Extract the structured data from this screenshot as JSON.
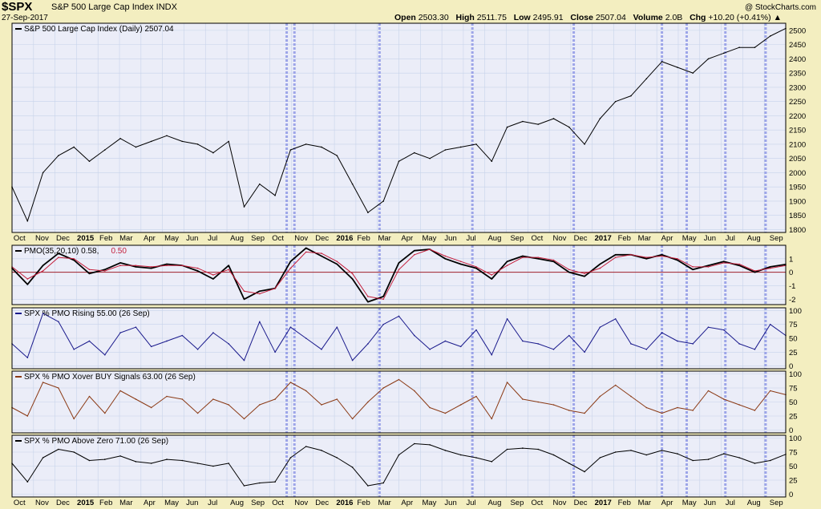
{
  "header": {
    "symbol": "$SPX",
    "name": "S&P 500 Large Cap Index  INDX",
    "date": "27-Sep-2017",
    "brand": "@ StockCharts.com",
    "ohlc": {
      "open_label": "Open",
      "open": "2503.30",
      "high_label": "High",
      "high": "2511.75",
      "low_label": "Low",
      "low": "2495.91",
      "close_label": "Close",
      "close": "2507.04",
      "volume_label": "Volume",
      "volume": "2.0B",
      "change_label": "Chg",
      "change": "+10.20 (+0.41%)"
    }
  },
  "colors": {
    "background": "#f3eec0",
    "panel": "#ebedf8",
    "grid": "#c7d3ea",
    "vertical_marker": "#9da5e8",
    "zero_line": "#a0202a",
    "price": "#000000",
    "pmo": "#000000",
    "pmo_signal": "#c41f3b",
    "pmo_rising": "#1a1a8c",
    "xover_buy": "#8b3a15",
    "above_zero": "#000000"
  },
  "chart_data": [
    {
      "type": "line",
      "legend": "S&P 500 Large Cap Index (Daily) 2507.04",
      "series": [
        {
          "name": "S&P 500 Large Cap Index (Daily)",
          "x": [
            0,
            2,
            4,
            6,
            8,
            10,
            12,
            14,
            16,
            18,
            20,
            22,
            24,
            26,
            28,
            30,
            32,
            34,
            36,
            38,
            40,
            42,
            44,
            46,
            48,
            50,
            52,
            54,
            56,
            58,
            60,
            62,
            64,
            66,
            68,
            70,
            72,
            74,
            76,
            78,
            80,
            82,
            84,
            86,
            88,
            90,
            92,
            94,
            96,
            98,
            100
          ],
          "values": [
            1950,
            1830,
            2000,
            2060,
            2090,
            2040,
            2080,
            2120,
            2090,
            2110,
            2130,
            2110,
            2100,
            2070,
            2110,
            1880,
            1960,
            1920,
            2080,
            2100,
            2090,
            2060,
            1960,
            1860,
            1900,
            2040,
            2070,
            2050,
            2080,
            2090,
            2100,
            2040,
            2160,
            2180,
            2170,
            2190,
            2160,
            2100,
            2190,
            2250,
            2270,
            2330,
            2390,
            2370,
            2350,
            2400,
            2420,
            2440,
            2440,
            2480,
            2507
          ]
        }
      ],
      "y_ticks": [
        1800,
        1850,
        1900,
        1950,
        2000,
        2050,
        2100,
        2150,
        2200,
        2250,
        2300,
        2350,
        2400,
        2450,
        2500
      ],
      "ylim": [
        1790,
        2525
      ]
    },
    {
      "type": "line",
      "legend": "PMO(35,20,10) 0.58,",
      "legend_signal": "0.50",
      "series": [
        {
          "name": "PMO",
          "x": [
            0,
            2,
            4,
            6,
            8,
            10,
            12,
            14,
            16,
            18,
            20,
            22,
            24,
            26,
            28,
            30,
            32,
            34,
            36,
            38,
            40,
            42,
            44,
            46,
            48,
            50,
            52,
            54,
            56,
            58,
            60,
            62,
            64,
            66,
            68,
            70,
            72,
            74,
            76,
            78,
            80,
            82,
            84,
            86,
            88,
            90,
            92,
            94,
            96,
            98,
            100
          ],
          "values": [
            0.3,
            -0.9,
            0.5,
            1.4,
            0.9,
            -0.1,
            0.2,
            0.7,
            0.4,
            0.3,
            0.6,
            0.5,
            0.1,
            -0.5,
            0.5,
            -2.0,
            -1.4,
            -1.2,
            0.8,
            1.8,
            1.2,
            0.6,
            -0.5,
            -2.2,
            -1.8,
            0.7,
            1.6,
            1.7,
            1.0,
            0.6,
            0.3,
            -0.5,
            0.8,
            1.2,
            1.0,
            0.8,
            0.0,
            -0.3,
            0.6,
            1.3,
            1.3,
            1.0,
            1.3,
            0.9,
            0.2,
            0.5,
            0.8,
            0.5,
            0.0,
            0.4,
            0.58
          ]
        },
        {
          "name": "Signal",
          "x": [
            0,
            2,
            4,
            6,
            8,
            10,
            12,
            14,
            16,
            18,
            20,
            22,
            24,
            26,
            28,
            30,
            32,
            34,
            36,
            38,
            40,
            42,
            44,
            46,
            48,
            50,
            52,
            54,
            56,
            58,
            60,
            62,
            64,
            66,
            68,
            70,
            72,
            74,
            76,
            78,
            80,
            82,
            84,
            86,
            88,
            90,
            92,
            94,
            96,
            98,
            100
          ],
          "values": [
            0.4,
            -0.5,
            0.1,
            1.1,
            1.0,
            0.2,
            0.1,
            0.5,
            0.5,
            0.4,
            0.5,
            0.5,
            0.3,
            -0.2,
            0.2,
            -1.4,
            -1.6,
            -1.2,
            0.3,
            1.5,
            1.4,
            0.8,
            -0.1,
            -1.8,
            -2.0,
            0.2,
            1.3,
            1.7,
            1.2,
            0.8,
            0.4,
            -0.2,
            0.5,
            1.1,
            1.1,
            0.9,
            0.2,
            -0.1,
            0.3,
            1.1,
            1.3,
            1.1,
            1.2,
            1.0,
            0.4,
            0.4,
            0.7,
            0.6,
            0.1,
            0.3,
            0.5
          ]
        }
      ],
      "y_ticks": [
        -2,
        -1,
        0,
        1
      ],
      "ylim": [
        -2.4,
        2.0
      ]
    },
    {
      "type": "line",
      "legend": "SPX % PMO Rising 55.00 (26 Sep)",
      "series": [
        {
          "name": "SPX % PMO Rising",
          "x": [
            0,
            2,
            4,
            6,
            8,
            10,
            12,
            14,
            16,
            18,
            20,
            22,
            24,
            26,
            28,
            30,
            32,
            34,
            36,
            38,
            40,
            42,
            44,
            46,
            48,
            50,
            52,
            54,
            56,
            58,
            60,
            62,
            64,
            66,
            68,
            70,
            72,
            74,
            76,
            78,
            80,
            82,
            84,
            86,
            88,
            90,
            92,
            94,
            96,
            98,
            100
          ],
          "values": [
            40,
            15,
            95,
            80,
            30,
            45,
            20,
            60,
            70,
            35,
            45,
            55,
            30,
            60,
            40,
            10,
            80,
            25,
            70,
            50,
            30,
            70,
            10,
            40,
            75,
            90,
            55,
            30,
            45,
            35,
            65,
            20,
            85,
            45,
            40,
            30,
            55,
            25,
            70,
            85,
            40,
            30,
            60,
            45,
            40,
            70,
            65,
            40,
            30,
            75,
            55
          ]
        }
      ],
      "y_ticks": [
        0,
        25,
        50,
        75,
        100
      ],
      "ylim": [
        -5,
        105
      ]
    },
    {
      "type": "line",
      "legend": "SPX % PMO Xover BUY Signals 63.00 (26 Sep)",
      "series": [
        {
          "name": "SPX % PMO Xover BUY Signals",
          "x": [
            0,
            2,
            4,
            6,
            8,
            10,
            12,
            14,
            16,
            18,
            20,
            22,
            24,
            26,
            28,
            30,
            32,
            34,
            36,
            38,
            40,
            42,
            44,
            46,
            48,
            50,
            52,
            54,
            56,
            58,
            60,
            62,
            64,
            66,
            68,
            70,
            72,
            74,
            76,
            78,
            80,
            82,
            84,
            86,
            88,
            90,
            92,
            94,
            96,
            98,
            100
          ],
          "values": [
            40,
            25,
            85,
            75,
            20,
            60,
            30,
            70,
            55,
            40,
            60,
            55,
            30,
            55,
            45,
            20,
            45,
            55,
            85,
            70,
            45,
            55,
            20,
            50,
            75,
            90,
            70,
            40,
            30,
            45,
            60,
            20,
            85,
            55,
            50,
            45,
            35,
            30,
            60,
            80,
            60,
            40,
            30,
            40,
            35,
            70,
            55,
            45,
            35,
            70,
            63
          ]
        }
      ],
      "y_ticks": [
        0,
        25,
        50,
        75,
        100
      ],
      "ylim": [
        -5,
        105
      ]
    },
    {
      "type": "line",
      "legend": "SPX % PMO Above Zero 71.00 (26 Sep)",
      "series": [
        {
          "name": "SPX % PMO Above Zero",
          "x": [
            0,
            2,
            4,
            6,
            8,
            10,
            12,
            14,
            16,
            18,
            20,
            22,
            24,
            26,
            28,
            30,
            32,
            34,
            36,
            38,
            40,
            42,
            44,
            46,
            48,
            50,
            52,
            54,
            56,
            58,
            60,
            62,
            64,
            66,
            68,
            70,
            72,
            74,
            76,
            78,
            80,
            82,
            84,
            86,
            88,
            90,
            92,
            94,
            96,
            98,
            100
          ],
          "values": [
            55,
            22,
            65,
            80,
            75,
            60,
            62,
            68,
            58,
            55,
            62,
            60,
            55,
            50,
            55,
            15,
            20,
            22,
            65,
            85,
            78,
            65,
            48,
            15,
            20,
            70,
            90,
            88,
            78,
            70,
            65,
            58,
            80,
            82,
            80,
            70,
            55,
            40,
            65,
            75,
            78,
            70,
            78,
            72,
            60,
            62,
            72,
            65,
            55,
            60,
            71
          ]
        }
      ],
      "y_ticks": [
        0,
        25,
        50,
        75,
        100
      ],
      "ylim": [
        -5,
        105
      ]
    }
  ],
  "x_axis": {
    "ticks": [
      {
        "label": "Oct",
        "pos": 0.2
      },
      {
        "label": "Nov",
        "pos": 3.0
      },
      {
        "label": "Dec",
        "pos": 5.7
      },
      {
        "label": "2015",
        "pos": 8.4,
        "bold": true
      },
      {
        "label": "Feb",
        "pos": 11.3
      },
      {
        "label": "Mar",
        "pos": 13.9
      },
      {
        "label": "Apr",
        "pos": 17.0
      },
      {
        "label": "May",
        "pos": 19.7
      },
      {
        "label": "Jun",
        "pos": 22.5
      },
      {
        "label": "Jul",
        "pos": 25.3
      },
      {
        "label": "Aug",
        "pos": 28.2
      },
      {
        "label": "Sep",
        "pos": 30.9
      },
      {
        "label": "Oct",
        "pos": 33.6
      },
      {
        "label": "Nov",
        "pos": 36.5
      },
      {
        "label": "Dec",
        "pos": 39.2
      },
      {
        "label": "2016",
        "pos": 41.9,
        "bold": true
      },
      {
        "label": "Feb",
        "pos": 44.6
      },
      {
        "label": "Mar",
        "pos": 47.3
      },
      {
        "label": "Apr",
        "pos": 50.3
      },
      {
        "label": "May",
        "pos": 53.0
      },
      {
        "label": "Jun",
        "pos": 55.9
      },
      {
        "label": "Jul",
        "pos": 58.7
      },
      {
        "label": "Aug",
        "pos": 61.5
      },
      {
        "label": "Sep",
        "pos": 64.4
      },
      {
        "label": "Oct",
        "pos": 67.1
      },
      {
        "label": "Nov",
        "pos": 69.9
      },
      {
        "label": "Dec",
        "pos": 72.6
      },
      {
        "label": "2017",
        "pos": 75.3,
        "bold": true
      },
      {
        "label": "Feb",
        "pos": 78.3
      },
      {
        "label": "Mar",
        "pos": 80.9
      },
      {
        "label": "Apr",
        "pos": 83.9
      },
      {
        "label": "May",
        "pos": 86.6
      },
      {
        "label": "Jun",
        "pos": 89.4
      },
      {
        "label": "Jul",
        "pos": 92.2
      },
      {
        "label": "Aug",
        "pos": 95.0
      },
      {
        "label": "Sep",
        "pos": 97.9
      }
    ],
    "markers": [
      35.5,
      36.5,
      47.5,
      59.5,
      72.6,
      84.0,
      87.2,
      92.2,
      97.4
    ]
  }
}
